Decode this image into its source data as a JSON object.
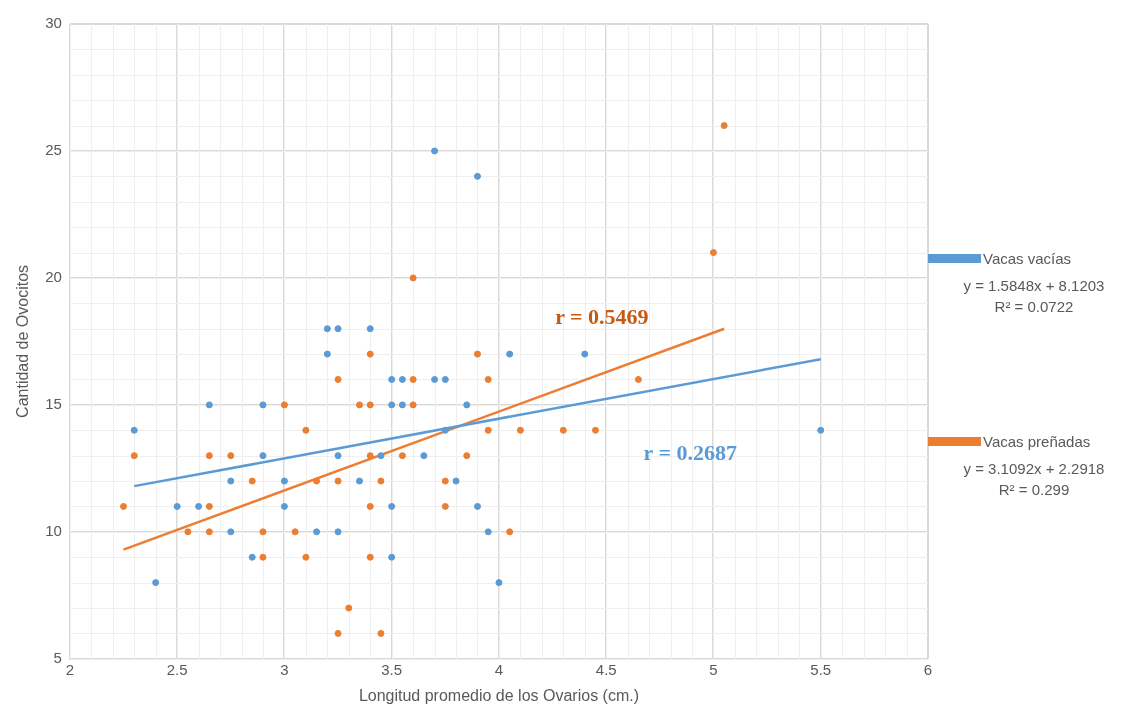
{
  "chart_data": {
    "type": "scatter",
    "xlabel": "Longitud promedio de los Ovarios (cm.)",
    "ylabel": "Cantidad de Ovocitos",
    "xlim": [
      2,
      6
    ],
    "xticks": [
      2,
      2.5,
      3,
      3.5,
      4,
      4.5,
      5,
      5.5,
      6
    ],
    "ylim": [
      5,
      30
    ],
    "yticks": [
      5,
      10,
      15,
      20,
      25,
      30
    ],
    "grid": true,
    "legend": "right",
    "marker": "circle",
    "series": [
      {
        "name": "Vacas vacías",
        "color": "#5b9bd5",
        "x": [
          2.3,
          2.4,
          2.5,
          2.6,
          2.65,
          2.75,
          2.75,
          2.85,
          2.9,
          2.9,
          3.0,
          3.0,
          3.15,
          3.2,
          3.2,
          3.25,
          3.25,
          3.25,
          3.35,
          3.4,
          3.45,
          3.5,
          3.5,
          3.5,
          3.5,
          3.55,
          3.55,
          3.65,
          3.7,
          3.7,
          3.75,
          3.75,
          3.8,
          3.85,
          3.9,
          3.9,
          3.95,
          4.0,
          4.05,
          4.4,
          5.5
        ],
        "values": [
          14,
          8,
          11,
          11,
          15,
          12,
          10,
          9,
          15,
          13,
          12,
          11,
          10,
          18,
          17,
          18,
          13,
          10,
          12,
          18,
          13,
          16,
          15,
          11,
          9,
          16,
          15,
          13,
          25,
          16,
          16,
          14,
          12,
          15,
          24,
          11,
          10,
          8,
          17,
          17,
          14
        ]
      },
      {
        "name": "Vacas preñadas",
        "color": "#ed7d31",
        "x": [
          2.25,
          2.3,
          2.55,
          2.65,
          2.65,
          2.65,
          2.75,
          2.85,
          2.9,
          2.9,
          3.0,
          3.05,
          3.1,
          3.1,
          3.15,
          3.25,
          3.25,
          3.25,
          3.3,
          3.35,
          3.4,
          3.4,
          3.4,
          3.4,
          3.4,
          3.45,
          3.45,
          3.55,
          3.6,
          3.6,
          3.6,
          3.75,
          3.75,
          3.85,
          3.9,
          3.95,
          3.95,
          4.05,
          4.1,
          4.3,
          4.45,
          4.65,
          5.0,
          5.05
        ],
        "values": [
          11,
          13,
          10,
          13,
          11,
          10,
          13,
          12,
          10,
          9,
          15,
          10,
          14,
          9,
          12,
          16,
          12,
          6,
          7,
          15,
          17,
          15,
          13,
          11,
          9,
          12,
          6,
          13,
          20,
          16,
          15,
          12,
          11,
          13,
          17,
          16,
          14,
          10,
          14,
          14,
          14,
          16,
          21,
          26
        ]
      },
      {
        "type": "line",
        "marker": "none",
        "color": "#5b9bd5",
        "x": [
          2.3,
          5.5
        ],
        "values": [
          11.8,
          16.8
        ]
      },
      {
        "type": "line",
        "marker": "none",
        "color": "#ed7d31",
        "x": [
          2.25,
          5.05
        ],
        "values": [
          9.3,
          18.0
        ]
      }
    ],
    "annotations": [
      "r = 0.5469",
      "r = 0.2687",
      "y = 1.5848x + 8.1203",
      "R² = 0.0722",
      "y = 3.1092x + 2.2918",
      "R² = 0.299"
    ]
  }
}
